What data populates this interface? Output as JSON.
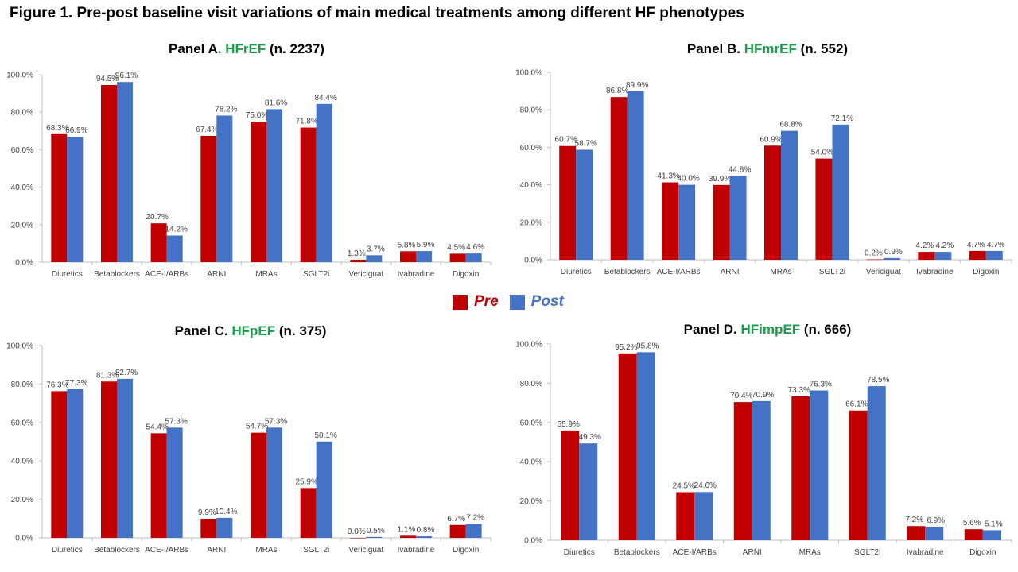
{
  "figure_title": "Figure 1. Pre-post baseline visit variations of main medical treatments among different HF phenotypes",
  "legend": {
    "pre": {
      "label": "Pre",
      "color": "#c00000"
    },
    "post": {
      "label": "Post",
      "color": "#4472c4"
    }
  },
  "colors": {
    "pre": "#c00000",
    "post": "#4472c4",
    "phenotype": "#1a9e4b"
  },
  "panels": [
    {
      "prefix": "Panel A",
      "sep": ". ",
      "phenotype": "HFrEF",
      "count": " (n. 2237)"
    },
    {
      "prefix": "Panel B.",
      "sep": " ",
      "phenotype": "HFmrEF",
      "count": " (n. 552)"
    },
    {
      "prefix": "Panel C.",
      "sep": " ",
      "phenotype": "HFpEF",
      "count": " (n. 375)"
    },
    {
      "prefix": "Panel D.",
      "sep": " ",
      "phenotype": "HFimpEF",
      "count": " (n. 666)"
    }
  ],
  "chart_data": [
    {
      "type": "bar",
      "title": "Panel A. HFrEF (n. 2237)",
      "categories": [
        "Diuretics",
        "Betablockers",
        "ACE-I/ARBs",
        "ARNI",
        "MRAs",
        "SGLT2i",
        "Vericiguat",
        "Ivabradine",
        "Digoxin"
      ],
      "series": [
        {
          "name": "Pre",
          "values": [
            68.3,
            94.5,
            20.7,
            67.4,
            75.0,
            71.8,
            1.3,
            5.8,
            4.5
          ]
        },
        {
          "name": "Post",
          "values": [
            66.9,
            96.1,
            14.2,
            78.2,
            81.6,
            84.4,
            3.7,
            5.9,
            4.6
          ]
        }
      ],
      "yticks": [
        "0.0%",
        "20.0%",
        "40.0%",
        "60.0%",
        "80.0%",
        "100.0%"
      ],
      "ylim": [
        0,
        100
      ],
      "grid": false
    },
    {
      "type": "bar",
      "title": "Panel B. HFmrEF (n. 552)",
      "categories": [
        "Diuretics",
        "Betablockers",
        "ACE-I/ARBs",
        "ARNI",
        "MRAs",
        "SGLT2i",
        "Vericiguat",
        "Ivabradine",
        "Digoxin"
      ],
      "series": [
        {
          "name": "Pre",
          "values": [
            60.7,
            86.8,
            41.3,
            39.9,
            60.9,
            54.0,
            0.2,
            4.2,
            4.7
          ]
        },
        {
          "name": "Post",
          "values": [
            58.7,
            89.9,
            40.0,
            44.8,
            68.8,
            72.1,
            0.9,
            4.2,
            4.7
          ]
        }
      ],
      "yticks": [
        "0.0%",
        "20.0%",
        "40.0%",
        "60.0%",
        "80.0%",
        "100.0%"
      ],
      "ylim": [
        0,
        100
      ],
      "grid": false
    },
    {
      "type": "bar",
      "title": "Panel C. HFpEF (n. 375)",
      "categories": [
        "Diuretics",
        "Betablockers",
        "ACE-I/ARBs",
        "ARNI",
        "MRAs",
        "SGLT2i",
        "Vericiguat",
        "Ivabradine",
        "Digoxin"
      ],
      "series": [
        {
          "name": "Pre",
          "values": [
            76.3,
            81.3,
            54.4,
            9.9,
            54.7,
            25.9,
            0.0,
            1.1,
            6.7
          ]
        },
        {
          "name": "Post",
          "values": [
            77.3,
            82.7,
            57.3,
            10.4,
            57.3,
            50.1,
            0.5,
            0.8,
            7.2
          ]
        }
      ],
      "yticks": [
        "0.0%",
        "20.0%",
        "40.0%",
        "60.0%",
        "80.0%",
        "100.0%"
      ],
      "ylim": [
        0,
        100
      ],
      "grid": false
    },
    {
      "type": "bar",
      "title": "Panel D. HFimpEF (n. 666)",
      "categories": [
        "Diuretics",
        "Betablockers",
        "ACE-I/ARBs",
        "ARNI",
        "MRAs",
        "SGLT2i",
        "Ivabradine",
        "Digoxin"
      ],
      "series": [
        {
          "name": "Pre",
          "values": [
            55.9,
            95.2,
            24.5,
            70.4,
            73.3,
            66.1,
            7.2,
            5.6
          ]
        },
        {
          "name": "Post",
          "values": [
            49.3,
            95.8,
            24.6,
            70.9,
            76.3,
            78.5,
            6.9,
            5.1
          ]
        }
      ],
      "yticks": [
        "0.0%",
        "20.0%",
        "40.0%",
        "60.0%",
        "80.0%",
        "100.0%"
      ],
      "ylim": [
        0,
        100
      ],
      "grid": false
    }
  ]
}
